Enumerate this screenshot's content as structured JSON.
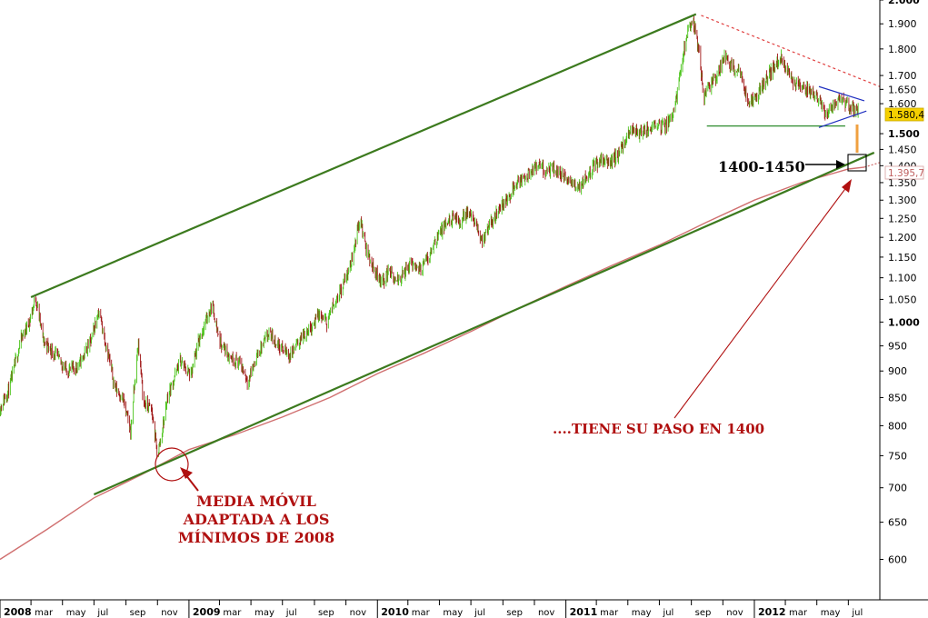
{
  "chart_data": {
    "type": "candlestick",
    "title": "",
    "xlabel": "",
    "ylabel": "",
    "x_range": [
      "2008-01-01",
      "2012-08-31"
    ],
    "y_range": [
      550,
      2000
    ],
    "y_scale": "log",
    "y_ticks": [
      {
        "value": 2000,
        "label": "2.000",
        "major": true
      },
      {
        "value": 1900,
        "label": "1.900"
      },
      {
        "value": 1800,
        "label": "1.800"
      },
      {
        "value": 1700,
        "label": "1.700"
      },
      {
        "value": 1650,
        "label": "1.650"
      },
      {
        "value": 1600,
        "label": "1.600"
      },
      {
        "value": 1500,
        "label": "1.500",
        "major": true
      },
      {
        "value": 1450,
        "label": "1.450"
      },
      {
        "value": 1400,
        "label": "1.400"
      },
      {
        "value": 1350,
        "label": "1.350"
      },
      {
        "value": 1300,
        "label": "1.300"
      },
      {
        "value": 1250,
        "label": "1.250"
      },
      {
        "value": 1200,
        "label": "1.200"
      },
      {
        "value": 1150,
        "label": "1.150"
      },
      {
        "value": 1100,
        "label": "1.100"
      },
      {
        "value": 1050,
        "label": "1.050"
      },
      {
        "value": 1000,
        "label": "1.000",
        "major": true
      },
      {
        "value": 950,
        "label": "950"
      },
      {
        "value": 900,
        "label": "900"
      },
      {
        "value": 850,
        "label": "850"
      },
      {
        "value": 800,
        "label": "800"
      },
      {
        "value": 750,
        "label": "750"
      },
      {
        "value": 700,
        "label": "700"
      },
      {
        "value": 650,
        "label": "650"
      },
      {
        "value": 600,
        "label": "600"
      }
    ],
    "x_ticks": [
      {
        "date": "2008-01-01",
        "label": "2008",
        "year": true
      },
      {
        "date": "2008-03-01",
        "label": "mar"
      },
      {
        "date": "2008-05-01",
        "label": "may"
      },
      {
        "date": "2008-07-01",
        "label": "jul"
      },
      {
        "date": "2008-09-01",
        "label": "sep"
      },
      {
        "date": "2008-11-01",
        "label": "nov"
      },
      {
        "date": "2009-01-01",
        "label": "2009",
        "year": true
      },
      {
        "date": "2009-03-01",
        "label": "mar"
      },
      {
        "date": "2009-05-01",
        "label": "may"
      },
      {
        "date": "2009-07-01",
        "label": "jul"
      },
      {
        "date": "2009-09-01",
        "label": "sep"
      },
      {
        "date": "2009-11-01",
        "label": "nov"
      },
      {
        "date": "2010-01-01",
        "label": "2010",
        "year": true
      },
      {
        "date": "2010-03-01",
        "label": "mar"
      },
      {
        "date": "2010-05-01",
        "label": "may"
      },
      {
        "date": "2010-07-01",
        "label": "jul"
      },
      {
        "date": "2010-09-01",
        "label": "sep"
      },
      {
        "date": "2010-11-01",
        "label": "nov"
      },
      {
        "date": "2011-01-01",
        "label": "2011",
        "year": true
      },
      {
        "date": "2011-03-01",
        "label": "mar"
      },
      {
        "date": "2011-05-01",
        "label": "may"
      },
      {
        "date": "2011-07-01",
        "label": "jul"
      },
      {
        "date": "2011-09-01",
        "label": "sep"
      },
      {
        "date": "2011-11-01",
        "label": "nov"
      },
      {
        "date": "2012-01-01",
        "label": "2012",
        "year": true
      },
      {
        "date": "2012-03-01",
        "label": "mar"
      },
      {
        "date": "2012-05-01",
        "label": "may"
      },
      {
        "date": "2012-07-01",
        "label": "jul"
      }
    ],
    "price_path": [
      [
        "2008-01-01",
        830
      ],
      [
        "2008-01-20",
        870
      ],
      [
        "2008-02-10",
        960
      ],
      [
        "2008-02-28",
        1005
      ],
      [
        "2008-03-10",
        1055
      ],
      [
        "2008-03-25",
        960
      ],
      [
        "2008-04-15",
        935
      ],
      [
        "2008-05-10",
        900
      ],
      [
        "2008-06-01",
        910
      ],
      [
        "2008-06-25",
        960
      ],
      [
        "2008-07-10",
        1025
      ],
      [
        "2008-07-25",
        950
      ],
      [
        "2008-08-10",
        870
      ],
      [
        "2008-08-25",
        850
      ],
      [
        "2008-09-10",
        790
      ],
      [
        "2008-09-25",
        955
      ],
      [
        "2008-10-05",
        840
      ],
      [
        "2008-10-20",
        830
      ],
      [
        "2008-11-01",
        750
      ],
      [
        "2008-11-10",
        790
      ],
      [
        "2008-11-20",
        850
      ],
      [
        "2008-12-01",
        880
      ],
      [
        "2008-12-15",
        920
      ],
      [
        "2009-01-05",
        890
      ],
      [
        "2009-01-20",
        960
      ],
      [
        "2009-02-15",
        1040
      ],
      [
        "2009-03-01",
        960
      ],
      [
        "2009-03-20",
        930
      ],
      [
        "2009-04-10",
        915
      ],
      [
        "2009-04-25",
        880
      ],
      [
        "2009-05-15",
        935
      ],
      [
        "2009-06-05",
        975
      ],
      [
        "2009-06-25",
        950
      ],
      [
        "2009-07-15",
        930
      ],
      [
        "2009-08-05",
        965
      ],
      [
        "2009-08-25",
        990
      ],
      [
        "2009-09-10",
        1015
      ],
      [
        "2009-09-25",
        1000
      ],
      [
        "2009-10-10",
        1045
      ],
      [
        "2009-10-25",
        1080
      ],
      [
        "2009-11-10",
        1130
      ],
      [
        "2009-11-28",
        1250
      ],
      [
        "2009-12-10",
        1170
      ],
      [
        "2009-12-25",
        1120
      ],
      [
        "2010-01-10",
        1090
      ],
      [
        "2010-01-25",
        1120
      ],
      [
        "2010-02-05",
        1085
      ],
      [
        "2010-02-20",
        1110
      ],
      [
        "2010-03-10",
        1135
      ],
      [
        "2010-03-25",
        1120
      ],
      [
        "2010-04-10",
        1150
      ],
      [
        "2010-04-25",
        1200
      ],
      [
        "2010-05-10",
        1225
      ],
      [
        "2010-05-25",
        1250
      ],
      [
        "2010-06-10",
        1240
      ],
      [
        "2010-06-25",
        1270
      ],
      [
        "2010-07-10",
        1230
      ],
      [
        "2010-07-25",
        1190
      ],
      [
        "2010-08-10",
        1240
      ],
      [
        "2010-08-25",
        1280
      ],
      [
        "2010-09-10",
        1300
      ],
      [
        "2010-09-25",
        1350
      ],
      [
        "2010-10-10",
        1360
      ],
      [
        "2010-10-25",
        1380
      ],
      [
        "2010-11-10",
        1400
      ],
      [
        "2010-11-25",
        1380
      ],
      [
        "2010-12-10",
        1390
      ],
      [
        "2010-12-25",
        1370
      ],
      [
        "2011-01-10",
        1350
      ],
      [
        "2011-01-25",
        1335
      ],
      [
        "2011-02-10",
        1370
      ],
      [
        "2011-02-25",
        1400
      ],
      [
        "2011-03-10",
        1420
      ],
      [
        "2011-03-25",
        1410
      ],
      [
        "2011-04-10",
        1430
      ],
      [
        "2011-04-25",
        1470
      ],
      [
        "2011-05-10",
        1520
      ],
      [
        "2011-05-25",
        1500
      ],
      [
        "2011-06-10",
        1510
      ],
      [
        "2011-06-25",
        1540
      ],
      [
        "2011-07-10",
        1520
      ],
      [
        "2011-07-25",
        1560
      ],
      [
        "2011-08-05",
        1640
      ],
      [
        "2011-08-15",
        1760
      ],
      [
        "2011-08-25",
        1880
      ],
      [
        "2011-09-05",
        1910
      ],
      [
        "2011-09-15",
        1800
      ],
      [
        "2011-09-25",
        1620
      ],
      [
        "2011-10-05",
        1660
      ],
      [
        "2011-10-20",
        1700
      ],
      [
        "2011-11-05",
        1770
      ],
      [
        "2011-11-20",
        1730
      ],
      [
        "2011-12-05",
        1710
      ],
      [
        "2011-12-20",
        1600
      ],
      [
        "2012-01-05",
        1620
      ],
      [
        "2012-01-20",
        1680
      ],
      [
        "2012-02-05",
        1720
      ],
      [
        "2012-02-20",
        1770
      ],
      [
        "2012-03-05",
        1720
      ],
      [
        "2012-03-20",
        1670
      ],
      [
        "2012-04-05",
        1650
      ],
      [
        "2012-04-20",
        1640
      ],
      [
        "2012-05-05",
        1620
      ],
      [
        "2012-05-20",
        1560
      ],
      [
        "2012-06-05",
        1600
      ],
      [
        "2012-06-20",
        1610
      ],
      [
        "2012-07-05",
        1580
      ],
      [
        "2012-07-20",
        1580.4
      ]
    ],
    "moving_average": [
      [
        "2008-01-01",
        600
      ],
      [
        "2008-04-01",
        640
      ],
      [
        "2008-07-01",
        685
      ],
      [
        "2008-10-01",
        720
      ],
      [
        "2009-01-01",
        760
      ],
      [
        "2009-04-01",
        785
      ],
      [
        "2009-07-01",
        815
      ],
      [
        "2009-10-01",
        850
      ],
      [
        "2010-01-01",
        895
      ],
      [
        "2010-04-01",
        935
      ],
      [
        "2010-07-01",
        980
      ],
      [
        "2010-10-01",
        1030
      ],
      [
        "2011-01-01",
        1080
      ],
      [
        "2011-04-01",
        1130
      ],
      [
        "2011-07-01",
        1180
      ],
      [
        "2011-10-01",
        1240
      ],
      [
        "2012-01-01",
        1300
      ],
      [
        "2012-04-01",
        1350
      ],
      [
        "2012-07-01",
        1390
      ],
      [
        "2012-08-01",
        1395.7
      ]
    ],
    "trendlines": [
      {
        "name": "upper-channel",
        "color": "#3c7a1e",
        "from": [
          "2008-03-01",
          1055
        ],
        "to": [
          "2011-09-10",
          1940
        ]
      },
      {
        "name": "lower-channel",
        "color": "#3c7a1e",
        "from": [
          "2008-07-01",
          690
        ],
        "to": [
          "2012-08-20",
          1440
        ]
      },
      {
        "name": "resistance-dashed",
        "color": "#e04040",
        "from": [
          "2011-09-20",
          1935
        ],
        "to": [
          "2012-08-31",
          1660
        ]
      },
      {
        "name": "support-horizontal",
        "color": "#2e8b2e",
        "from": [
          "2011-10-01",
          1525
        ],
        "to": [
          "2012-06-25",
          1525
        ]
      },
      {
        "name": "triangle-top",
        "color": "#2030c0",
        "from": [
          "2012-05-05",
          1660
        ],
        "to": [
          "2012-08-01",
          1610
        ]
      },
      {
        "name": "triangle-bottom",
        "color": "#2030c0",
        "from": [
          "2012-05-05",
          1520
        ],
        "to": [
          "2012-08-05",
          1575
        ]
      }
    ],
    "last_price": {
      "label": "1.580,4",
      "value": 1580.4,
      "color": "#f5d000"
    },
    "ma_value": {
      "label": "1.395,7",
      "value": 1395.7,
      "color": "#c06060"
    },
    "colors": {
      "up": "#4cc41c",
      "down": "#a01818",
      "ma": "#d07070",
      "channel": "#3c7a1e",
      "annotation": "#b01010"
    },
    "annotations": [
      {
        "text": "1400-1450",
        "color": "#000000"
      },
      {
        "text": "....TIENE SU PASO EN 1400",
        "color": "#b01010"
      },
      {
        "text": "MEDIA MÓVIL",
        "color": "#b01010"
      },
      {
        "text": "ADAPTADA A LOS",
        "color": "#b01010"
      },
      {
        "text": "MÍNIMOS DE 2008",
        "color": "#b01010"
      }
    ]
  }
}
